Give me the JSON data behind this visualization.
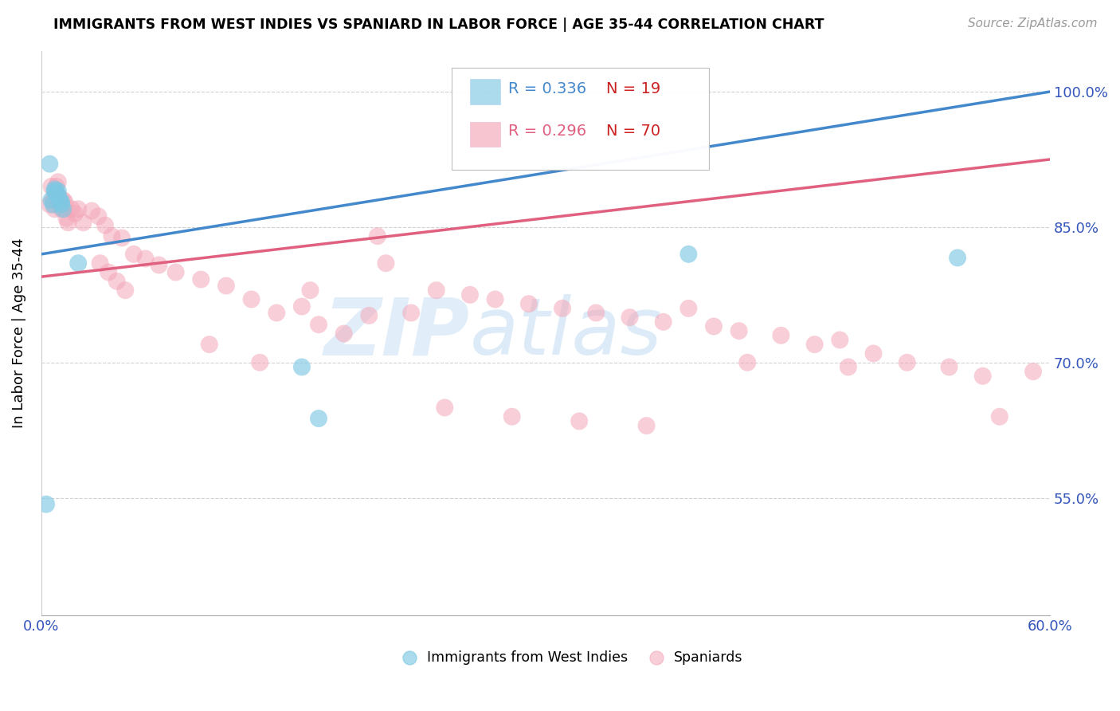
{
  "title": "IMMIGRANTS FROM WEST INDIES VS SPANIARD IN LABOR FORCE | AGE 35-44 CORRELATION CHART",
  "source": "Source: ZipAtlas.com",
  "ylabel": "In Labor Force | Age 35-44",
  "blue_color": "#7ec8e3",
  "pink_color": "#f4a6b8",
  "blue_line_color": "#4488cc",
  "pink_line_color": "#e06080",
  "legend_blue_r": "R = 0.336",
  "legend_blue_n": "N = 19",
  "legend_pink_r": "R = 0.296",
  "legend_pink_n": "N = 70",
  "xlim": [
    0.0,
    0.6
  ],
  "ylim": [
    0.42,
    1.045
  ],
  "blue_x": [
    0.003,
    0.005,
    0.006,
    0.007,
    0.008,
    0.008,
    0.009,
    0.009,
    0.01,
    0.01,
    0.011,
    0.012,
    0.012,
    0.013,
    0.022,
    0.155,
    0.165,
    0.385,
    0.545
  ],
  "blue_y": [
    0.543,
    0.92,
    0.88,
    0.875,
    0.89,
    0.892,
    0.887,
    0.888,
    0.885,
    0.89,
    0.88,
    0.875,
    0.878,
    0.87,
    0.81,
    0.695,
    0.638,
    0.82,
    0.816
  ],
  "pink_x": [
    0.005,
    0.006,
    0.007,
    0.008,
    0.009,
    0.01,
    0.01,
    0.011,
    0.012,
    0.013,
    0.014,
    0.015,
    0.016,
    0.018,
    0.02,
    0.022,
    0.025,
    0.03,
    0.034,
    0.038,
    0.042,
    0.048,
    0.055,
    0.062,
    0.07,
    0.08,
    0.095,
    0.11,
    0.125,
    0.14,
    0.155,
    0.165,
    0.18,
    0.195,
    0.205,
    0.22,
    0.235,
    0.255,
    0.27,
    0.29,
    0.31,
    0.33,
    0.35,
    0.37,
    0.385,
    0.4,
    0.415,
    0.44,
    0.46,
    0.475,
    0.495,
    0.515,
    0.54,
    0.56,
    0.57,
    0.59,
    0.035,
    0.04,
    0.045,
    0.05,
    0.1,
    0.13,
    0.16,
    0.2,
    0.24,
    0.28,
    0.32,
    0.36,
    0.42,
    0.48
  ],
  "pink_y": [
    0.875,
    0.895,
    0.88,
    0.87,
    0.895,
    0.9,
    0.885,
    0.875,
    0.87,
    0.88,
    0.878,
    0.86,
    0.855,
    0.87,
    0.865,
    0.87,
    0.855,
    0.868,
    0.862,
    0.852,
    0.84,
    0.838,
    0.82,
    0.815,
    0.808,
    0.8,
    0.792,
    0.785,
    0.77,
    0.755,
    0.762,
    0.742,
    0.732,
    0.752,
    0.81,
    0.755,
    0.78,
    0.775,
    0.77,
    0.765,
    0.76,
    0.755,
    0.75,
    0.745,
    0.76,
    0.74,
    0.735,
    0.73,
    0.72,
    0.725,
    0.71,
    0.7,
    0.695,
    0.685,
    0.64,
    0.69,
    0.81,
    0.8,
    0.79,
    0.78,
    0.72,
    0.7,
    0.78,
    0.84,
    0.65,
    0.64,
    0.635,
    0.63,
    0.7,
    0.695
  ],
  "xtick_labels": [
    "0.0%",
    "",
    "",
    "",
    "",
    "",
    "60.0%"
  ],
  "ytick_labels_right": [
    "55.0%",
    "70.0%",
    "85.0%",
    "100.0%"
  ],
  "yticks": [
    0.55,
    0.7,
    0.85,
    1.0
  ]
}
